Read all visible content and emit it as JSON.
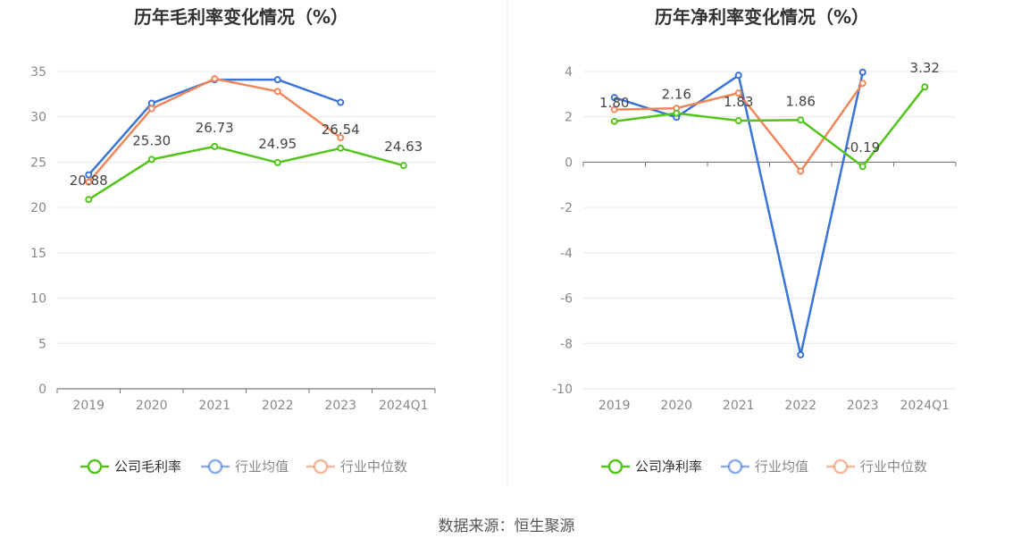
{
  "source": "数据来源：恒生聚源",
  "chart_data": [
    {
      "type": "line",
      "title": "历年毛利率变化情况（%）",
      "categories": [
        "2019",
        "2020",
        "2021",
        "2022",
        "2023",
        "2024Q1"
      ],
      "ylim": [
        0,
        35
      ],
      "yticks": [
        0,
        5,
        10,
        15,
        20,
        25,
        30,
        35
      ],
      "grid": true,
      "legend_position": "bottom",
      "series": [
        {
          "name": "公司毛利率",
          "color": "#52c41a",
          "values": [
            20.88,
            25.3,
            26.73,
            24.95,
            26.54,
            24.63
          ],
          "labels": [
            "20.88",
            "25.30",
            "26.73",
            "24.95",
            "26.54",
            "24.63"
          ]
        },
        {
          "name": "行业均值",
          "color": "#3a73d9",
          "values": [
            23.6,
            31.5,
            34.1,
            34.1,
            31.6,
            null
          ]
        },
        {
          "name": "行业中位数",
          "color": "#f0875a",
          "values": [
            22.8,
            30.9,
            34.2,
            32.8,
            27.7,
            null
          ]
        }
      ]
    },
    {
      "type": "line",
      "title": "历年净利率变化情况（%）",
      "categories": [
        "2019",
        "2020",
        "2021",
        "2022",
        "2023",
        "2024Q1"
      ],
      "ylim": [
        -10,
        4
      ],
      "yticks": [
        -10,
        -8,
        -6,
        -4,
        -2,
        0,
        2,
        4
      ],
      "grid": true,
      "legend_position": "bottom",
      "series": [
        {
          "name": "公司净利率",
          "color": "#52c41a",
          "values": [
            1.8,
            2.16,
            1.83,
            1.86,
            -0.19,
            3.32
          ],
          "labels": [
            "1.80",
            "2.16",
            "1.83",
            "1.86",
            "-0.19",
            "3.32"
          ]
        },
        {
          "name": "行业均值",
          "color": "#3a73d9",
          "values": [
            2.85,
            1.98,
            3.83,
            -8.5,
            3.97,
            null
          ]
        },
        {
          "name": "行业中位数",
          "color": "#f0875a",
          "values": [
            2.32,
            2.38,
            3.05,
            -0.4,
            3.48,
            null
          ]
        }
      ]
    }
  ]
}
